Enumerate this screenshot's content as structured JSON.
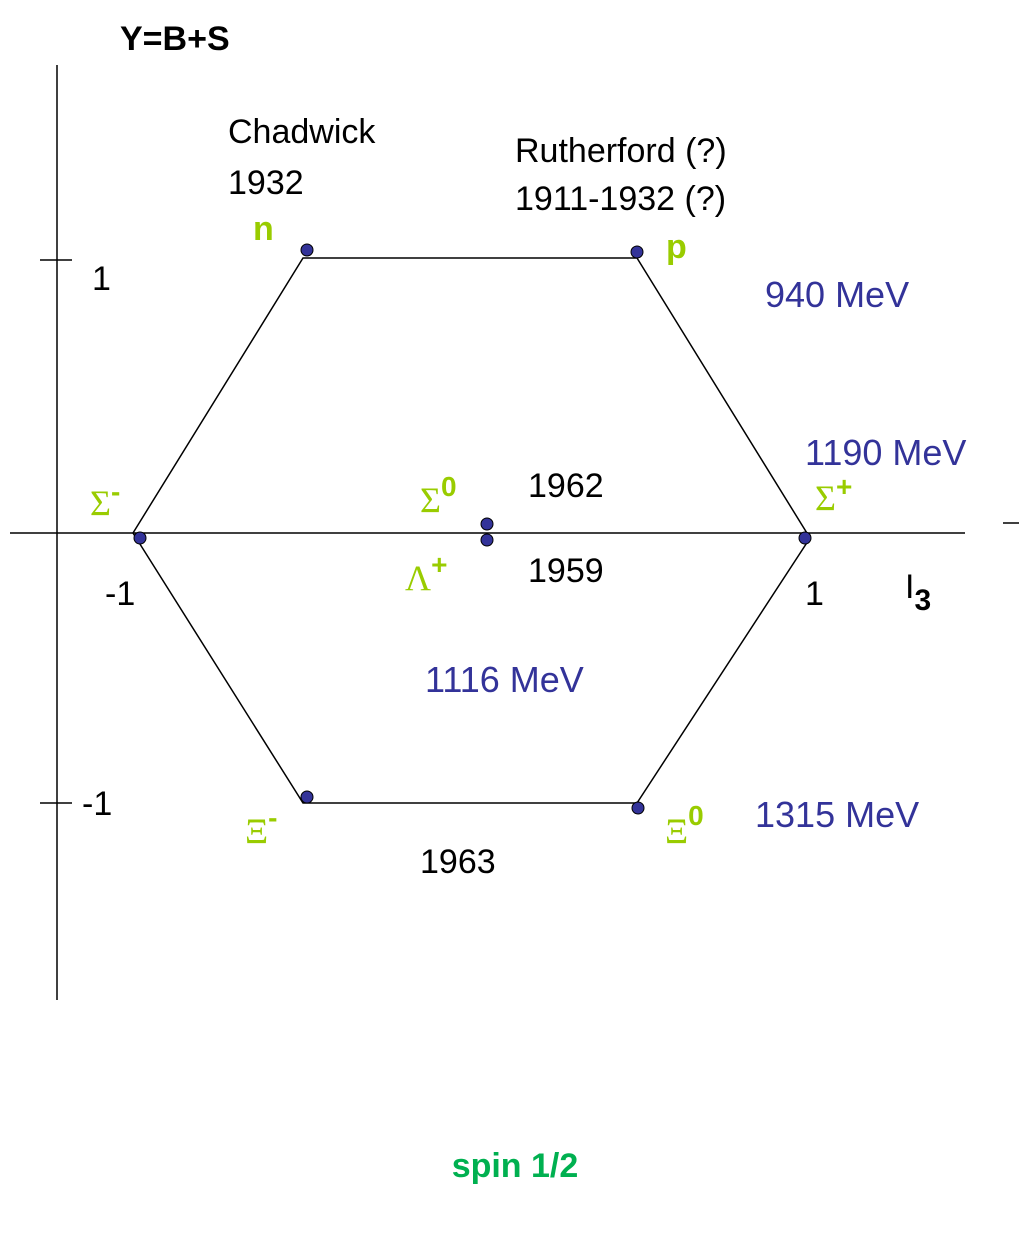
{
  "axes": {
    "y_label": "Y=B+S",
    "x_label": "I",
    "x_label_sub": "3",
    "y_tick_top": "1",
    "y_tick_bottom": "-1",
    "x_tick_left": "-1",
    "x_tick_right": "1"
  },
  "particles": [
    {
      "symbol": "n"
    },
    {
      "symbol": "p"
    },
    {
      "symbol": "Σ",
      "charge": "-"
    },
    {
      "symbol": "Σ",
      "charge": "0"
    },
    {
      "symbol": "Σ",
      "charge": "+"
    },
    {
      "symbol": "Λ",
      "charge": "+"
    },
    {
      "symbol": "Ξ",
      "charge": "-"
    },
    {
      "symbol": "Ξ",
      "charge": "0"
    }
  ],
  "annotations": {
    "chadwick": [
      "Chadwick",
      "1932"
    ],
    "rutherford": [
      "Rutherford (?)",
      "1911-1932 (?)"
    ],
    "sigma0_year": "1962",
    "lambda_year": "1959",
    "xi_year": "1963"
  },
  "masses": {
    "nucleon": "940 MeV",
    "sigma": "1190 MeV",
    "lambda": "1116 MeV",
    "xi": "1315 MeV"
  },
  "footer": "spin 1/2"
}
